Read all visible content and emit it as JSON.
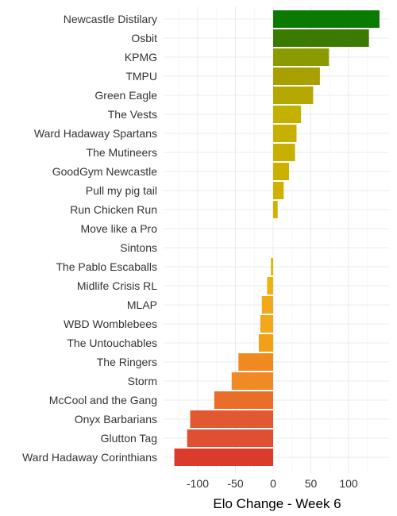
{
  "chart_data": {
    "type": "bar",
    "orientation": "horizontal",
    "title": "",
    "xlabel": "Elo Change - Week 6",
    "ylabel": "",
    "xlim": [
      -131,
      158
    ],
    "xticks": [
      -100,
      -50,
      0,
      50,
      100
    ],
    "xtick_labels": [
      "-100",
      "-50",
      "0",
      "50",
      "100"
    ],
    "grid": true,
    "legend": "none",
    "categories": [
      "Newcastle Distilary",
      "Osbit",
      "KPMG",
      "TMPU",
      "Green Eagle",
      "The Vests",
      "Ward Hadaway Spartans",
      "The Mutineers",
      "GoodGym Newcastle",
      "Pull my pig tail",
      "Run Chicken Run",
      "Move like a Pro",
      "Sintons",
      "The Pablo Escaballs",
      "Midlife Crisis RL",
      "MLAP",
      "WBD Womblebees",
      "The Untouchables",
      "The Ringers",
      "Storm",
      "McCool and the Gang",
      "Onyx Barbarians",
      "Glutton Tag",
      "Ward Hadaway Corinthians"
    ],
    "values": [
      141,
      127,
      74,
      62,
      53,
      37,
      31,
      29,
      21,
      14,
      6,
      0,
      0,
      -3,
      -8,
      -15,
      -17,
      -19,
      -46,
      -55,
      -78,
      -110,
      -114,
      -131
    ],
    "colors": [
      "#0a7a00",
      "#3a7a00",
      "#8a9a00",
      "#a8a000",
      "#b4a800",
      "#c4b000",
      "#c8b000",
      "#c8b000",
      "#ccb000",
      "#d0b000",
      "#d4b000",
      "#d8b000",
      "#dcb000",
      "#e8b000",
      "#f0b010",
      "#f2a818",
      "#f2a818",
      "#f2a018",
      "#f08a20",
      "#ef8a24",
      "#e86e2a",
      "#e25830",
      "#e05030",
      "#dc3a2a"
    ]
  }
}
